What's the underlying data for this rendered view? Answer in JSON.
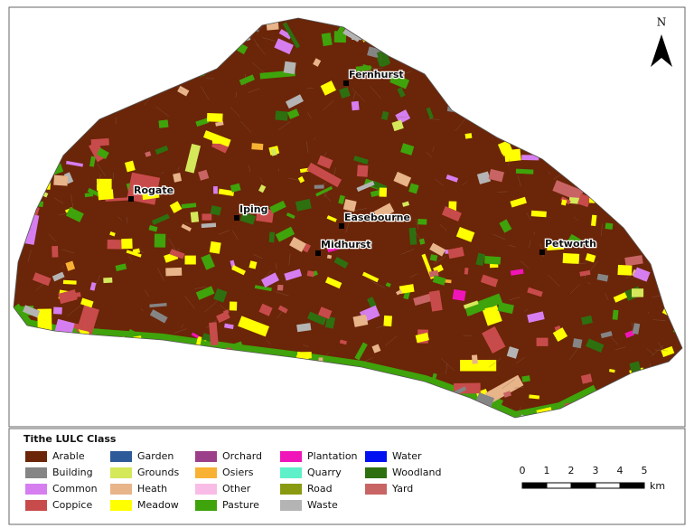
{
  "map": {
    "north": "N",
    "places": [
      "Fernhurst",
      "Rogate",
      "Iping",
      "Easebourne",
      "Midhurst",
      "Petworth"
    ]
  },
  "legend": {
    "title": "Tithe LULC Class",
    "items": [
      {
        "label": "Arable",
        "color": "#6b2508"
      },
      {
        "label": "Building",
        "color": "#858585"
      },
      {
        "label": "Common",
        "color": "#d67ef0"
      },
      {
        "label": "Coppice",
        "color": "#c84b4b"
      },
      {
        "label": "Garden",
        "color": "#2f5a9a"
      },
      {
        "label": "Grounds",
        "color": "#d4e85a"
      },
      {
        "label": "Heath",
        "color": "#e8b48a"
      },
      {
        "label": "Meadow",
        "color": "#ffff00"
      },
      {
        "label": "Orchard",
        "color": "#9b3f8a"
      },
      {
        "label": "Osiers",
        "color": "#f8b133"
      },
      {
        "label": "Other",
        "color": "#f9bce6"
      },
      {
        "label": "Pasture",
        "color": "#3fa30b"
      },
      {
        "label": "Plantation",
        "color": "#f015b8"
      },
      {
        "label": "Quarry",
        "color": "#5ef0c8"
      },
      {
        "label": "Road",
        "color": "#8a9a10"
      },
      {
        "label": "Waste",
        "color": "#b4b4b4"
      },
      {
        "label": "Water",
        "color": "#0010f0"
      },
      {
        "label": "Woodland",
        "color": "#2e6f10"
      },
      {
        "label": "Yard",
        "color": "#c86464"
      }
    ]
  },
  "scale": {
    "ticks": [
      0,
      1,
      2,
      3,
      4,
      5
    ],
    "unit": "km"
  }
}
